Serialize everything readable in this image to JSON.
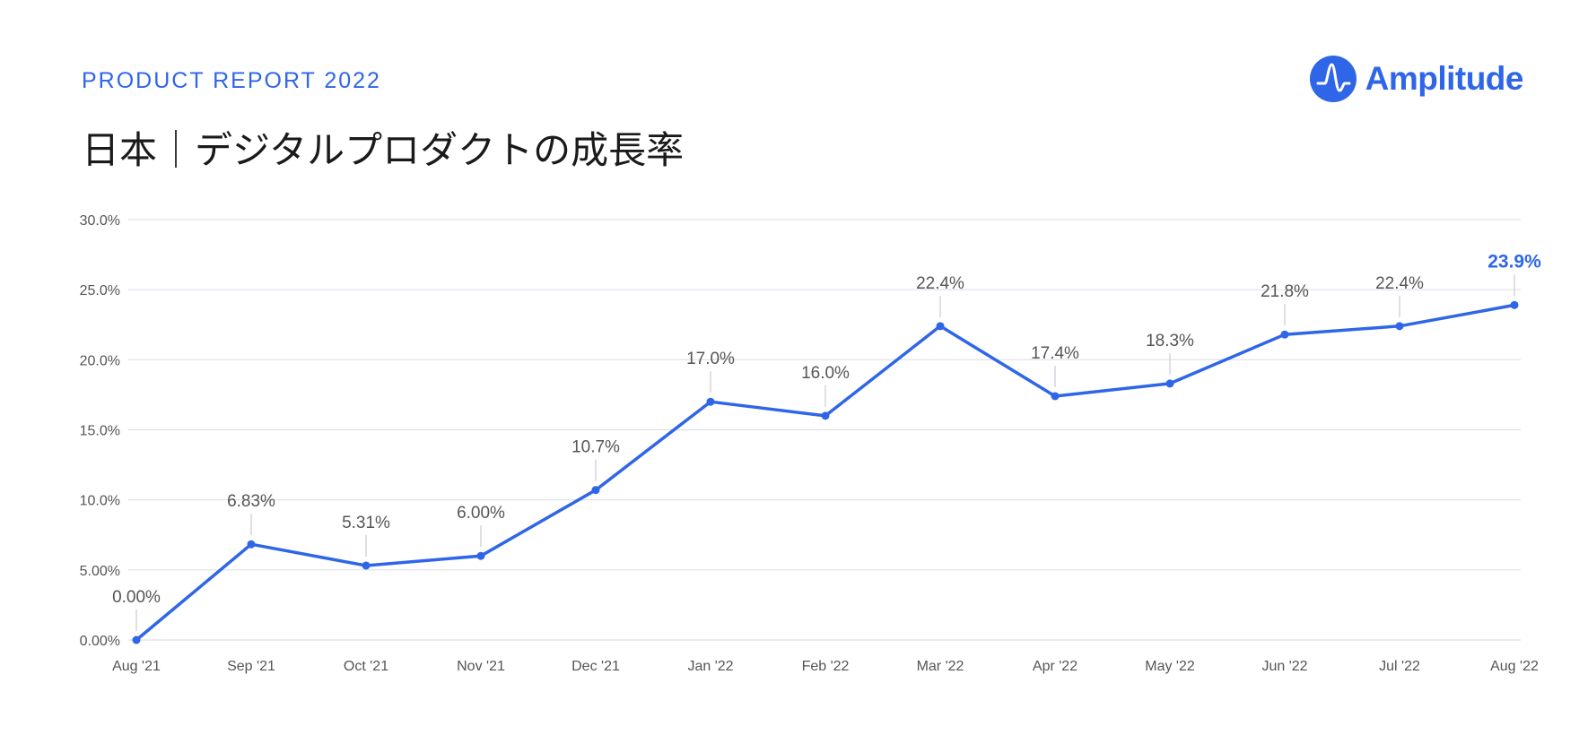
{
  "header": {
    "kicker": "PRODUCT REPORT 2022",
    "title": "日本｜デジタルプロダクトの成長率"
  },
  "brand": {
    "name": "Amplitude",
    "icon": "amplitude-logo-icon",
    "color": "#2f66e8"
  },
  "chart_data": {
    "type": "line",
    "categories": [
      "Aug '21",
      "Sep '21",
      "Oct '21",
      "Nov '21",
      "Dec '21",
      "Jan '22",
      "Feb '22",
      "Mar '22",
      "Apr '22",
      "May '22",
      "Jun '22",
      "Jul '22",
      "Aug '22"
    ],
    "values": [
      0.0,
      6.83,
      5.31,
      6.0,
      10.7,
      17.0,
      16.0,
      22.4,
      17.4,
      18.3,
      21.8,
      22.4,
      23.9
    ],
    "data_labels": [
      "0.00%",
      "6.83%",
      "5.31%",
      "6.00%",
      "10.7%",
      "17.0%",
      "16.0%",
      "22.4%",
      "17.4%",
      "18.3%",
      "21.8%",
      "22.4%",
      "23.9%"
    ],
    "yticks": [
      0,
      5,
      10,
      15,
      20,
      25,
      30
    ],
    "ytick_labels": [
      "0.00%",
      "5.00%",
      "10.0%",
      "15.0%",
      "20.0%",
      "25.0%",
      "30.0%"
    ],
    "ylim": [
      0,
      30
    ],
    "grid": true,
    "line_color": "#2f66e8",
    "grid_color": "#dde0ea",
    "highlight_last": true
  }
}
